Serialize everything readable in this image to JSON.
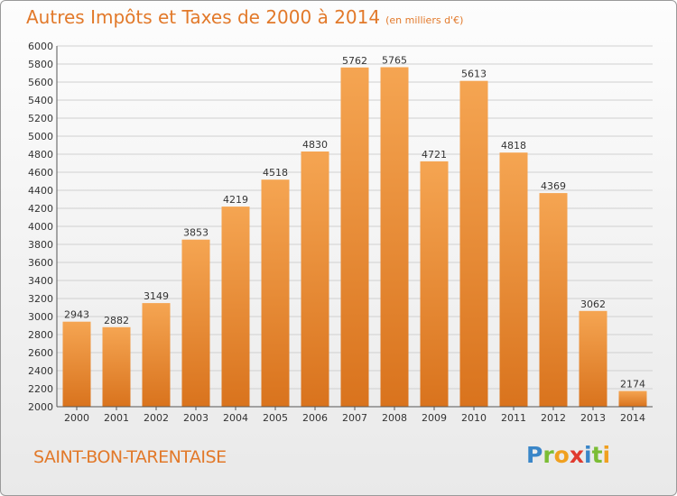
{
  "title": "Autres Impôts et Taxes de 2000 à 2014",
  "unit": "(en milliers d'€)",
  "commune": "SAINT-BON-TARENTAISE",
  "logo": {
    "letters": [
      {
        "char": "P",
        "color": "#3a86c8"
      },
      {
        "char": "r",
        "color": "#7bbd35"
      },
      {
        "char": "o",
        "color": "#f0a020"
      },
      {
        "char": "x",
        "color": "#e03a2e"
      },
      {
        "char": "i",
        "color": "#3a86c8"
      },
      {
        "char": "t",
        "color": "#7bbd35"
      },
      {
        "char": "i",
        "color": "#f0a020"
      }
    ]
  },
  "colors": {
    "title": "#e2792a",
    "bar_light": "#f5a552",
    "bar_dark": "#d9731d",
    "grid": "#d0d0d0"
  },
  "chart_data": {
    "type": "bar",
    "categories": [
      "2000",
      "2001",
      "2002",
      "2003",
      "2004",
      "2005",
      "2006",
      "2007",
      "2008",
      "2009",
      "2010",
      "2011",
      "2012",
      "2013",
      "2014"
    ],
    "values": [
      2943,
      2882,
      3149,
      3853,
      4219,
      4518,
      4830,
      5762,
      5765,
      4721,
      5613,
      4818,
      4369,
      3062,
      2174
    ],
    "ylim": [
      2000,
      6000
    ],
    "yticks": [
      2000,
      2200,
      2400,
      2600,
      2800,
      3000,
      3200,
      3400,
      3600,
      3800,
      4000,
      4200,
      4400,
      4600,
      4800,
      5000,
      5200,
      5400,
      5600,
      5800,
      6000
    ],
    "grid": true
  }
}
